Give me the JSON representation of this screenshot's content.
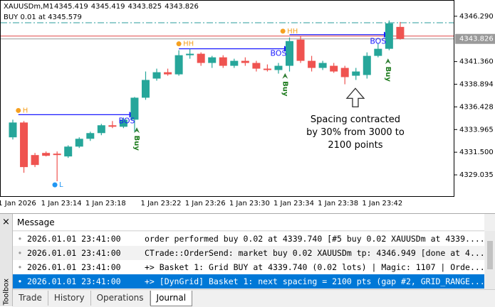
{
  "chart_data": {
    "type": "candlestick",
    "symbol": "XAUUSDm,M1",
    "ohlc_header": [
      4345.419,
      4345.419,
      4343.825,
      4343.826
    ],
    "trade_label": "BUY 0.01 at 4345.579",
    "categories": [
      "1 Jan 2026",
      null,
      null,
      null,
      "1 Jan 23:14",
      null,
      null,
      null,
      "1 Jan 23:18",
      null,
      null,
      null,
      null,
      "1 Jan 23:22",
      null,
      null,
      null,
      "1 Jan 23:26",
      null,
      null,
      null,
      "1 Jan 23:30",
      null,
      null,
      null,
      "1 Jan 23:34",
      null,
      null,
      null,
      "1 Jan 23:38",
      null,
      null,
      null,
      "1 Jan 23:42",
      null,
      null
    ],
    "open": [
      4333.12,
      4334.73,
      4331.19,
      4331.42,
      4331.34,
      4331.04,
      4332.11,
      4332.96,
      4333.58,
      4334.43,
      4334.27,
      4335.04,
      4337.43,
      4339.51,
      4340.2,
      4339.97,
      4342.05,
      4342.21,
      4341.21,
      4341.82,
      4340.9,
      4341.44,
      4341.21,
      4340.59,
      4340.44,
      4340.9,
      4343.75,
      4341.44,
      4340.67,
      4340.9,
      4340.67,
      4339.82,
      4339.9,
      4341.98,
      4342.75,
      4345.13
    ],
    "high": [
      4335.04,
      4334.89,
      4331.42,
      4331.58,
      4331.58,
      4332.25,
      4333.12,
      4333.73,
      4334.58,
      4334.89,
      4335.27,
      4337.51,
      4340.28,
      4340.59,
      4340.59,
      4342.59,
      4342.75,
      4342.36,
      4341.98,
      4342.05,
      4341.67,
      4341.82,
      4341.44,
      4341.05,
      4341.21,
      4343.98,
      4344.13,
      4341.98,
      4341.44,
      4341.21,
      4340.9,
      4340.67,
      4342.36,
      4343.36,
      4345.83,
      4345.67
    ],
    "low": [
      4332.88,
      4329.26,
      4329.88,
      4331.04,
      4328.34,
      4330.88,
      4331.96,
      4332.73,
      4333.35,
      4334.12,
      4334.12,
      4333.73,
      4337.2,
      4339.28,
      4339.82,
      4339.82,
      4341.67,
      4340.9,
      4340.67,
      4340.67,
      4340.67,
      4340.9,
      4340.28,
      4340.28,
      4340.05,
      4340.28,
      4341.21,
      4340.28,
      4340.44,
      4340.13,
      4338.89,
      4339.36,
      4339.51,
      4341.82,
      4342.59,
      4343.75
    ],
    "close": [
      4334.73,
      4329.88,
      4330.11,
      4331.11,
      4331.19,
      4332.11,
      4332.96,
      4333.58,
      4334.43,
      4334.27,
      4335.04,
      4337.43,
      4339.36,
      4340.2,
      4339.97,
      4342.05,
      4342.21,
      4341.21,
      4341.82,
      4340.9,
      4341.44,
      4341.21,
      4340.59,
      4340.44,
      4340.9,
      4343.59,
      4341.44,
      4340.67,
      4341.21,
      4340.28,
      4339.67,
      4340.28,
      4341.98,
      4342.75,
      4345.52,
      4343.826
    ],
    "up_color": "#26a69a",
    "down_color": "#ef5350",
    "ylim": [
      4326.72,
      4347.98
    ],
    "yticks": [
      {
        "value": 4346.29,
        "label": "4346.290"
      },
      {
        "value": 4341.36,
        "label": "4341.360"
      },
      4338.894,
      4336.428,
      4333.965,
      {
        "value": 4331.5,
        "label": "4331.500"
      },
      4329.035
    ],
    "current_price": 4343.826,
    "price_lines": [
      {
        "price": 4345.579,
        "color": "#2a9d9d",
        "dash": "9 3 2 3"
      },
      {
        "price": 4344.13,
        "color": "#e04848",
        "dash": "none"
      }
    ],
    "swing_points": [
      {
        "text": "H",
        "index": 0.5,
        "price": 4336.04,
        "color": "#f5a020"
      },
      {
        "text": "L",
        "index": 3.8,
        "price": 4327.95,
        "color": "#2196f3"
      },
      {
        "text": "HH",
        "index": 15,
        "price": 4343.29,
        "color": "#f5a020"
      },
      {
        "text": "HH",
        "index": 24.4,
        "price": 4344.67,
        "color": "#f5a020"
      }
    ],
    "bos_lines": [
      {
        "price": 4335.58,
        "from": 0.5,
        "to": 11,
        "color": "#1a1aff"
      },
      {
        "price": 4342.75,
        "from": 15,
        "to": 25,
        "color": "#1a1aff"
      },
      {
        "price": 4344.29,
        "from": 25,
        "to": 34,
        "color": "#1a1aff"
      }
    ],
    "bos_labels": [
      {
        "text": "BOS",
        "index": 10.3,
        "price": 4334.89
      },
      {
        "text": "BOS",
        "index": 24,
        "price": 4342.21
      },
      {
        "text": "BOS",
        "index": 33,
        "price": 4343.52
      }
    ],
    "signals": [
      {
        "text": "Buy",
        "index": 11.2,
        "price": 4332.5
      },
      {
        "text": "Buy",
        "index": 24.6,
        "price": 4338.4
      },
      {
        "text": "Buy",
        "index": 33.9,
        "price": 4340.0
      }
    ],
    "annotation": {
      "lines": [
        "Spacing contracted",
        "by 30% from 3000 to",
        "2100 points"
      ],
      "index": 30.95,
      "price": 4335.04
    }
  },
  "toolbox": {
    "title": "Toolbox",
    "column": "Message",
    "rows": [
      {
        "time": "2026.01.01 23:41:00",
        "message": "order performed buy 0.02 at 4339.740 [#5 buy 0.02 XAUUSDm at 4339...."
      },
      {
        "time": "2026.01.01 23:41:00",
        "message": "CTrade::OrderSend: market buy 0.02 XAUUSDm tp: 4346.949 [done at 4..."
      },
      {
        "time": "2026.01.01 23:41:00",
        "message": "+> Basket 1: Grid BUY at 4339.740 (0.02 lots) | Magic: 1107 | Orde..."
      },
      {
        "time": "2026.01.01 23:41:00",
        "message": "+> [DynGrid] Basket 1: next spacing = 2100 pts (gap #2, GRID_RANGE..."
      }
    ],
    "tabs": [
      "Trade",
      "History",
      "Operations",
      "Journal"
    ]
  }
}
